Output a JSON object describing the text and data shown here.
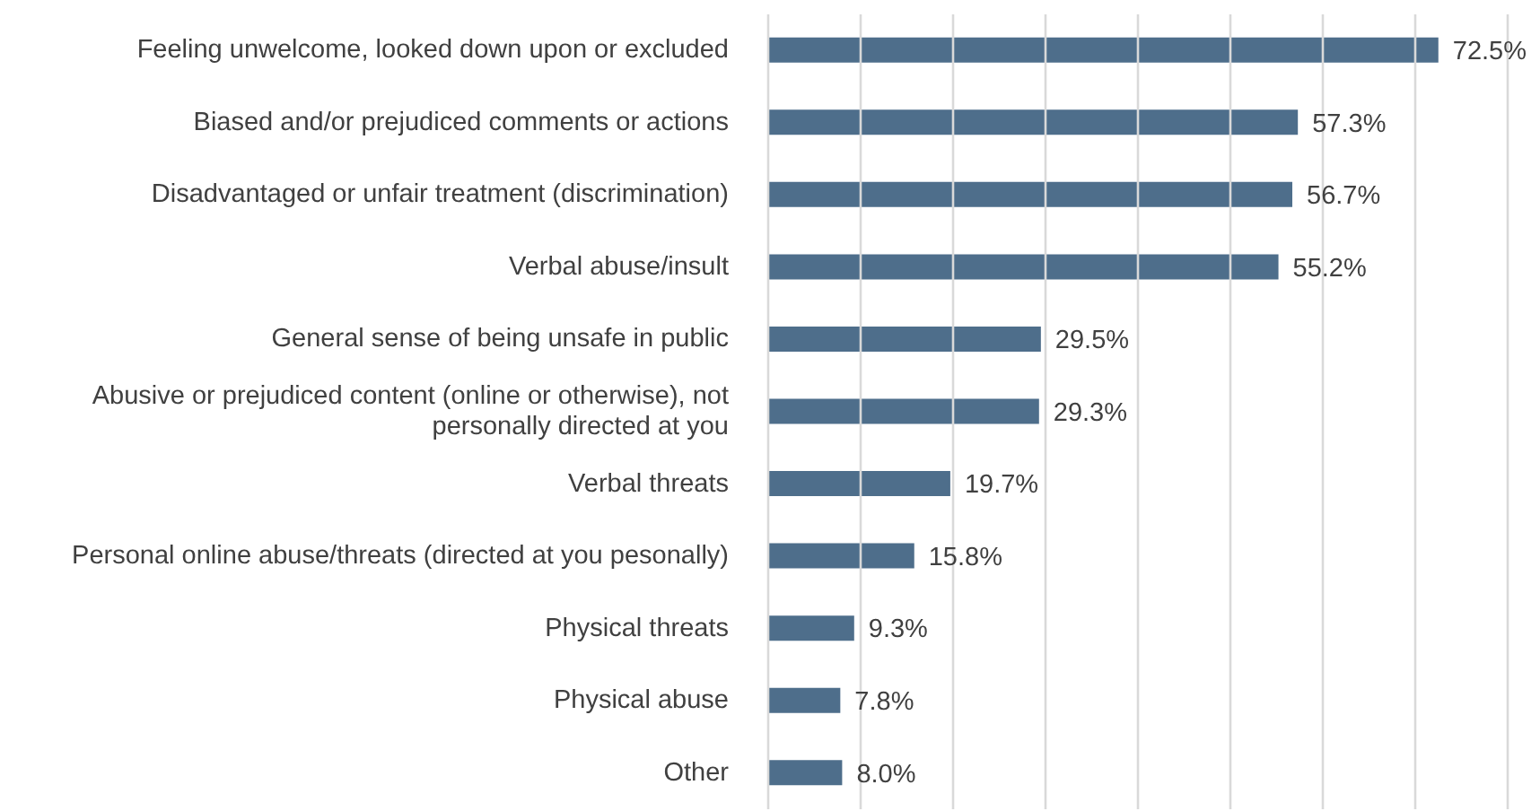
{
  "chart_data": {
    "type": "bar",
    "orientation": "horizontal",
    "categories": [
      "Feeling unwelcome, looked down upon or excluded",
      "Biased and/or prejudiced comments or actions",
      "Disadvantaged or unfair treatment (discrimination)",
      "Verbal abuse/insult",
      "General sense of being unsafe in public",
      "Abusive or prejudiced content (online or otherwise), not personally directed at you",
      "Verbal threats",
      "Personal online abuse/threats (directed at you pesonally)",
      "Physical threats",
      "Physical abuse",
      "Other"
    ],
    "values": [
      72.5,
      57.3,
      56.7,
      55.2,
      29.5,
      29.3,
      19.7,
      15.8,
      9.3,
      7.8,
      8.0
    ],
    "value_labels": [
      "72.5%",
      "57.3%",
      "56.7%",
      "55.2%",
      "29.5%",
      "29.3%",
      "19.7%",
      "15.8%",
      "9.3%",
      "7.8%",
      "8.0%"
    ],
    "color": "#4e6e8b",
    "xlim": [
      0,
      80
    ],
    "xticks": [
      {
        "value": 0,
        "label": null
      },
      {
        "value": 10,
        "label": null
      },
      {
        "value": 20,
        "label": null
      },
      {
        "value": 30,
        "label": null
      },
      {
        "value": 40,
        "label": null
      },
      {
        "value": 50,
        "label": null
      },
      {
        "value": 60,
        "label": null
      },
      {
        "value": 70,
        "label": null
      },
      {
        "value": 80,
        "label": null
      }
    ],
    "grid": "x",
    "tick_labels": "y"
  }
}
